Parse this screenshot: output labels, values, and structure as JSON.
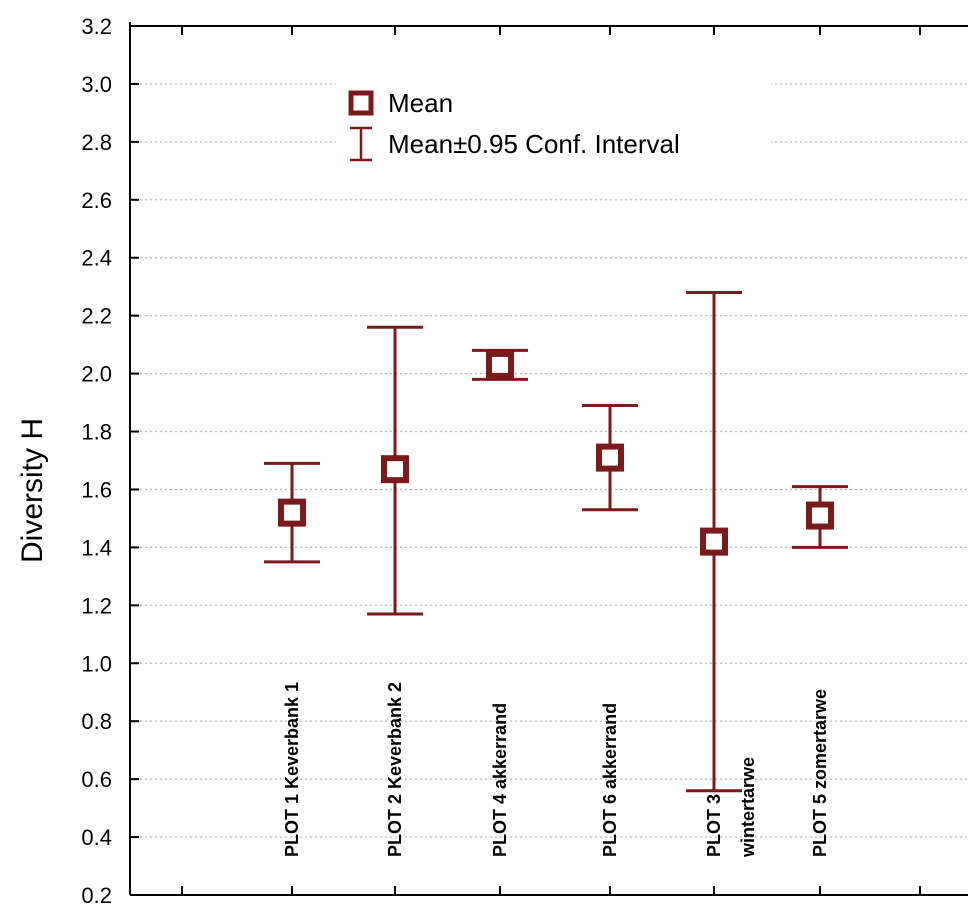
{
  "chart_data": {
    "type": "errorbar",
    "ylabel": "Diversity H",
    "xlabel": "",
    "ylim": [
      0.2,
      3.2
    ],
    "yticks": [
      "0.2",
      "0.4",
      "0.6",
      "0.8",
      "1.0",
      "1.2",
      "1.4",
      "1.6",
      "1.8",
      "2.0",
      "2.2",
      "2.4",
      "2.6",
      "2.8",
      "3.0",
      "3.2"
    ],
    "grid": "horizontal dotted",
    "legend": {
      "position": "top-center",
      "mean_label": "Mean",
      "ci_label": "Mean±0.95 Conf. Interval"
    },
    "color": "#7b1a1a",
    "categories": [
      {
        "label": [
          "PLOT 1 Keverbank 1"
        ],
        "mean": 1.52,
        "lower": 1.35,
        "upper": 1.69
      },
      {
        "label": [
          "PLOT 2 Keverbank 2"
        ],
        "mean": 1.67,
        "lower": 1.17,
        "upper": 2.16
      },
      {
        "label": [
          "PLOT 4  akkerrand"
        ],
        "mean": 2.03,
        "lower": 1.98,
        "upper": 2.08
      },
      {
        "label": [
          "PLOT 6  akkerrand"
        ],
        "mean": 1.71,
        "lower": 1.53,
        "upper": 1.89
      },
      {
        "label": [
          "PLOT 3",
          "wintertarwe"
        ],
        "mean": 1.42,
        "lower": 0.56,
        "upper": 2.28
      },
      {
        "label": [
          "PLOT 5 zomertarwe"
        ],
        "mean": 1.51,
        "lower": 1.4,
        "upper": 1.61
      }
    ]
  }
}
